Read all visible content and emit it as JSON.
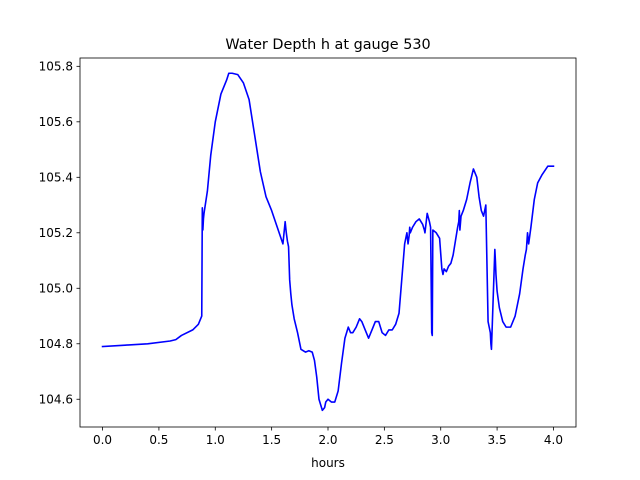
{
  "chart_data": {
    "type": "line",
    "title": "Water Depth h at gauge 530",
    "xlabel": "hours",
    "ylabel": "",
    "xlim": [
      -0.2,
      4.2
    ],
    "ylim": [
      104.5,
      105.83
    ],
    "x_ticks": [
      0.0,
      0.5,
      1.0,
      1.5,
      2.0,
      2.5,
      3.0,
      3.5,
      4.0
    ],
    "x_tick_labels": [
      "0.0",
      "0.5",
      "1.0",
      "1.5",
      "2.0",
      "2.5",
      "3.0",
      "3.5",
      "4.0"
    ],
    "y_ticks": [
      104.6,
      104.8,
      105.0,
      105.2,
      105.4,
      105.6,
      105.8
    ],
    "y_tick_labels": [
      "104.6",
      "104.8",
      "105.0",
      "105.2",
      "105.4",
      "105.6",
      "105.8"
    ],
    "grid": false,
    "legend": "none",
    "series": [
      {
        "color": "#0000ff",
        "x": [
          0.0,
          0.2,
          0.4,
          0.6,
          0.65,
          0.7,
          0.8,
          0.85,
          0.88,
          0.885,
          0.89,
          0.895,
          0.9,
          0.93,
          0.96,
          1.0,
          1.05,
          1.1,
          1.12,
          1.15,
          1.2,
          1.25,
          1.3,
          1.35,
          1.4,
          1.45,
          1.5,
          1.55,
          1.6,
          1.62,
          1.63,
          1.64,
          1.65,
          1.66,
          1.67,
          1.68,
          1.7,
          1.73,
          1.76,
          1.8,
          1.83,
          1.86,
          1.88,
          1.9,
          1.92,
          1.95,
          1.97,
          1.98,
          2.0,
          2.03,
          2.06,
          2.09,
          2.12,
          2.15,
          2.18,
          2.2,
          2.22,
          2.25,
          2.28,
          2.3,
          2.33,
          2.36,
          2.39,
          2.42,
          2.45,
          2.48,
          2.51,
          2.54,
          2.57,
          2.6,
          2.63,
          2.66,
          2.68,
          2.7,
          2.71,
          2.72,
          2.725,
          2.73,
          2.75,
          2.78,
          2.81,
          2.84,
          2.855,
          2.86,
          2.88,
          2.9,
          2.91,
          2.92,
          2.925,
          2.93,
          2.96,
          2.99,
          3.01,
          3.02,
          3.03,
          3.05,
          3.07,
          3.09,
          3.11,
          3.13,
          3.15,
          3.16,
          3.165,
          3.17,
          3.18,
          3.2,
          3.23,
          3.26,
          3.29,
          3.32,
          3.34,
          3.36,
          3.38,
          3.4,
          3.42,
          3.43,
          3.44,
          3.445,
          3.45,
          3.48,
          3.485,
          3.49,
          3.5,
          3.52,
          3.55,
          3.58,
          3.62,
          3.66,
          3.7,
          3.73,
          3.75,
          3.76,
          3.77,
          3.78,
          3.8,
          3.83,
          3.86,
          3.9,
          3.95,
          3.98,
          4.0
        ],
        "y": [
          104.79,
          104.795,
          104.8,
          104.81,
          104.815,
          104.83,
          104.85,
          104.87,
          104.9,
          105.29,
          105.21,
          105.25,
          105.27,
          105.35,
          105.48,
          105.6,
          105.7,
          105.75,
          105.775,
          105.775,
          105.77,
          105.74,
          105.68,
          105.55,
          105.42,
          105.33,
          105.28,
          105.22,
          105.16,
          105.24,
          105.2,
          105.17,
          105.15,
          105.03,
          104.98,
          104.94,
          104.89,
          104.84,
          104.78,
          104.77,
          104.775,
          104.77,
          104.74,
          104.68,
          104.6,
          104.56,
          104.57,
          104.59,
          104.6,
          104.59,
          104.59,
          104.63,
          104.73,
          104.82,
          104.86,
          104.84,
          104.84,
          104.86,
          104.89,
          104.88,
          104.85,
          104.82,
          104.85,
          104.88,
          104.88,
          104.84,
          104.83,
          104.85,
          104.85,
          104.87,
          104.91,
          105.06,
          105.16,
          105.2,
          105.16,
          105.19,
          105.22,
          105.2,
          105.22,
          105.24,
          105.25,
          105.23,
          105.21,
          105.2,
          105.27,
          105.24,
          105.22,
          104.84,
          104.83,
          105.21,
          105.2,
          105.18,
          105.07,
          105.05,
          105.07,
          105.06,
          105.08,
          105.09,
          105.12,
          105.17,
          105.22,
          105.24,
          105.28,
          105.21,
          105.26,
          105.28,
          105.32,
          105.38,
          105.43,
          105.4,
          105.33,
          105.28,
          105.26,
          105.3,
          104.88,
          104.86,
          104.84,
          104.8,
          104.78,
          105.14,
          105.1,
          105.05,
          104.99,
          104.93,
          104.88,
          104.86,
          104.86,
          104.9,
          104.98,
          105.07,
          105.12,
          105.14,
          105.2,
          105.16,
          105.22,
          105.32,
          105.38,
          105.41,
          105.44,
          105.44,
          105.44
        ]
      }
    ]
  }
}
